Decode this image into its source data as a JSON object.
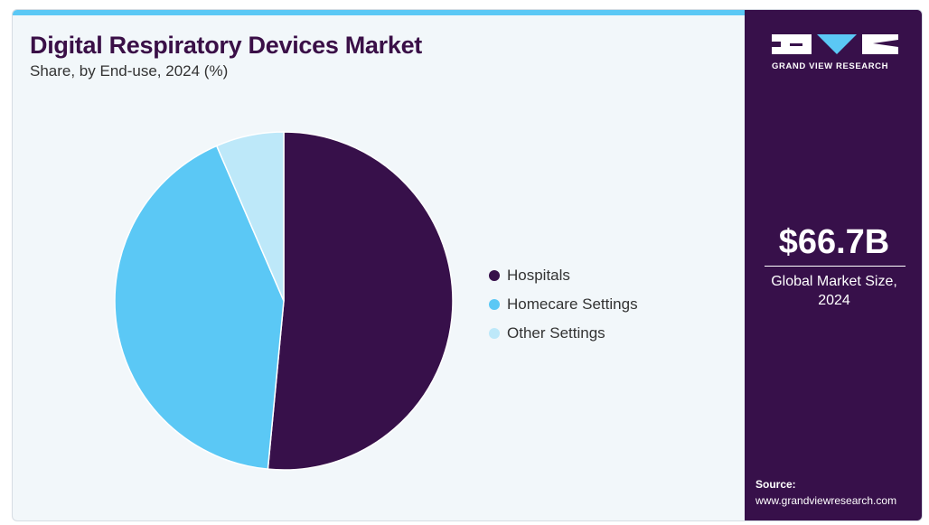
{
  "header": {
    "title": "Digital Respiratory Devices Market",
    "subtitle": "Share, by End-use, 2024 (%)"
  },
  "colors": {
    "accent": "#3a0f47",
    "topbar": "#5bc8f5",
    "title": "#3a0f47",
    "side_bg": "#37104a"
  },
  "chart_data": {
    "type": "pie",
    "title": "Digital Respiratory Devices Market",
    "subtitle": "Share, by End-use, 2024 (%)",
    "legend_position": "right",
    "slices": [
      {
        "label": "Hospitals",
        "value": 51.5,
        "color": "#37104a"
      },
      {
        "label": "Homecare Settings",
        "value": 42.0,
        "color": "#5bc8f5"
      },
      {
        "label": "Other Settings",
        "value": 6.5,
        "color": "#bde8f9"
      }
    ]
  },
  "sidebar": {
    "logo_text": "GRAND VIEW RESEARCH",
    "market_size": "$66.7B",
    "market_size_label_line1": "Global Market Size,",
    "market_size_label_line2": "2024",
    "source_title": "Source:",
    "source_url": "www.grandviewresearch.com"
  }
}
